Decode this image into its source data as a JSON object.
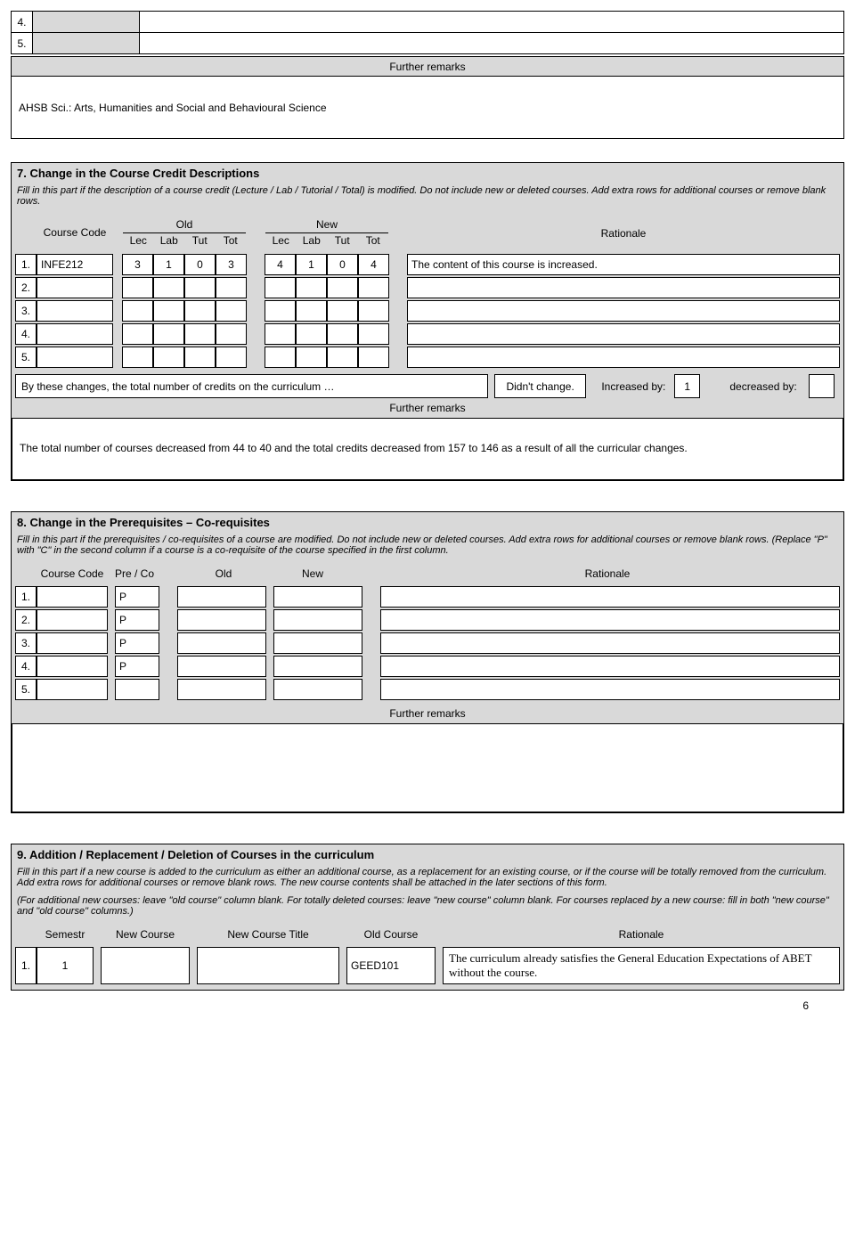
{
  "topRows": {
    "r4": "4.",
    "r5": "5."
  },
  "furtherRemarks": "Further remarks",
  "ahsb": "AHSB Sci.: Arts, Humanities and Social and Behavioural Science",
  "sec7": {
    "title": "7. Change in the Course Credit Descriptions",
    "desc": "Fill in this part if the description of a course credit (Lecture / Lab / Tutorial / Total) is modified. Do not include new or deleted courses. Add extra rows for additional courses or remove blank rows.",
    "head": {
      "courseCode": "Course Code",
      "old": "Old",
      "new": "New",
      "rationale": "Rationale",
      "lec": "Lec",
      "lab": "Lab",
      "tut": "Tut",
      "tot": "Tot"
    },
    "rows": [
      {
        "n": "1.",
        "code": "INFE212",
        "ol": "3",
        "oa": "1",
        "ot": "0",
        "oT": "3",
        "nl": "4",
        "na": "1",
        "nt": "0",
        "nT": "4",
        "rat": "The content of this course is increased."
      },
      {
        "n": "2.",
        "code": "",
        "ol": "",
        "oa": "",
        "ot": "",
        "oT": "",
        "nl": "",
        "na": "",
        "nt": "",
        "nT": "",
        "rat": ""
      },
      {
        "n": "3.",
        "code": "",
        "ol": "",
        "oa": "",
        "ot": "",
        "oT": "",
        "nl": "",
        "na": "",
        "nt": "",
        "nT": "",
        "rat": ""
      },
      {
        "n": "4.",
        "code": "",
        "ol": "",
        "oa": "",
        "ot": "",
        "oT": "",
        "nl": "",
        "na": "",
        "nt": "",
        "nT": "",
        "rat": ""
      },
      {
        "n": "5.",
        "code": "",
        "ol": "",
        "oa": "",
        "ot": "",
        "oT": "",
        "nl": "",
        "na": "",
        "nt": "",
        "nT": "",
        "rat": ""
      }
    ],
    "summary": {
      "text": "By these changes, the total number of credits on the curriculum …",
      "didnt": "Didn't change.",
      "inc": "Increased by:",
      "incVal": "1",
      "dec": "decreased by:"
    },
    "remarks": "The total number of courses decreased from 44 to 40 and the total credits decreased from 157 to 146 as a result of all the curricular changes."
  },
  "sec8": {
    "title": "8. Change in the Prerequisites – Co-requisites",
    "desc": "Fill in this part if the prerequisites / co-requisites of a course are modified. Do not include new or deleted courses. Add extra rows for additional courses or remove blank rows. (Replace \"P\" with \"C\" in the second column if a course is a co-requisite of the course specified in the first column.",
    "head": {
      "courseCode": "Course Code",
      "preco": "Pre / Co",
      "old": "Old",
      "new": "New",
      "rationale": "Rationale"
    },
    "rows": [
      {
        "n": "1.",
        "p": "P"
      },
      {
        "n": "2.",
        "p": "P"
      },
      {
        "n": "3.",
        "p": "P"
      },
      {
        "n": "4.",
        "p": "P"
      },
      {
        "n": "5.",
        "p": ""
      }
    ]
  },
  "sec9": {
    "title": "9. Addition / Replacement / Deletion of Courses in the curriculum",
    "desc1": "Fill in this part if a new course is added to the curriculum as either an additional course, as a replacement for an existing course, or if the course will be totally removed from the curriculum. Add extra rows for additional courses or remove blank rows. The new course contents shall be attached in the later sections of this form.",
    "desc2": "(For additional new courses: leave \"old course\" column blank. For totally deleted courses: leave \"new course\" column blank. For courses replaced by a new course: fill in both \"new course\" and \"old course\" columns.)",
    "head": {
      "sem": "Semestr",
      "nc": "New Course",
      "nct": "New Course Title",
      "oc": "Old Course",
      "rat": "Rationale"
    },
    "rows": [
      {
        "n": "1.",
        "sem": "1",
        "nc": "",
        "nct": "",
        "oc": "GEED101",
        "rat": "The curriculum already satisfies the General Education Expectations of ABET without the course."
      }
    ]
  },
  "pageNumber": "6"
}
